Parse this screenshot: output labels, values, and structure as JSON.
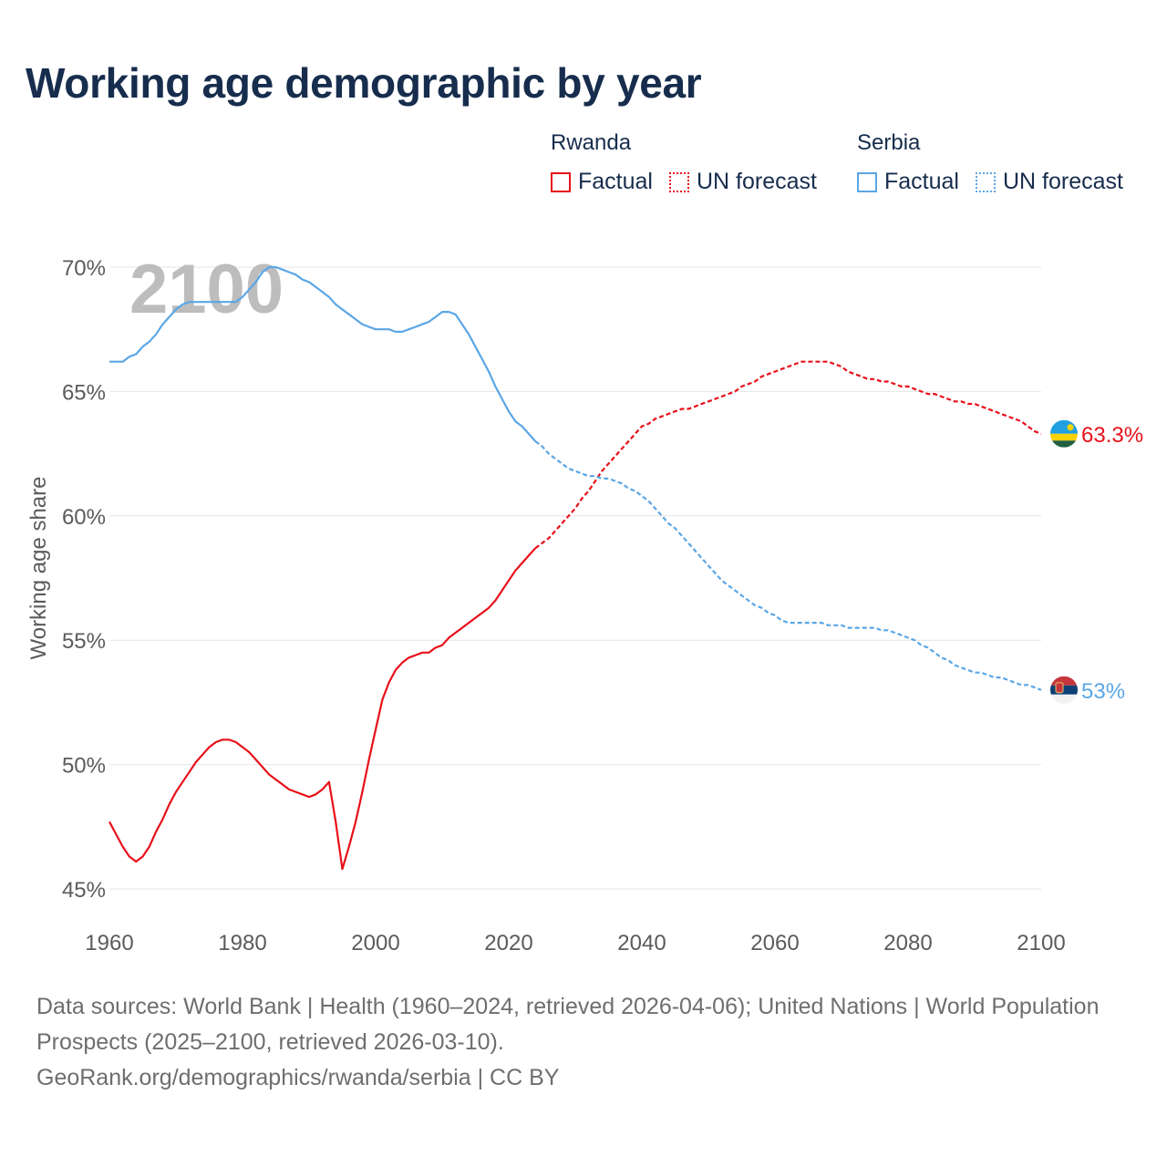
{
  "title": "Working age demographic by year",
  "legend": [
    {
      "country": "Rwanda",
      "factual_label": "Factual",
      "forecast_label": "UN forecast",
      "color": "#e8101a"
    },
    {
      "country": "Serbia",
      "factual_label": "Factual",
      "forecast_label": "UN forecast",
      "color": "#5aa6e6"
    }
  ],
  "year_watermark": "2100",
  "footer": {
    "sources": "Data sources: World Bank | Health (1960–2024, retrieved 2026-04-06); United Nations | World Population Prospects (2025–2100, retrieved 2026-03-10).",
    "credit": "GeoRank.org/demographics/rwanda/serbia | CC BY"
  },
  "chart_data": {
    "type": "line",
    "title": "Working age demographic by year",
    "xlabel": "",
    "ylabel": "Working age share",
    "xlim": [
      1960,
      2100
    ],
    "ylim": [
      45,
      70
    ],
    "x_ticks": [
      1960,
      1980,
      2000,
      2020,
      2040,
      2060,
      2080,
      2100
    ],
    "y_ticks": [
      45,
      50,
      55,
      60,
      65,
      70
    ],
    "y_tick_labels": [
      "45%",
      "50%",
      "55%",
      "60%",
      "65%",
      "70%"
    ],
    "forecast_start": 2024,
    "series": [
      {
        "name": "Rwanda",
        "color": "#e8101a",
        "end_label": "63.3%",
        "points": [
          [
            1960,
            47.7
          ],
          [
            1961,
            47.2
          ],
          [
            1962,
            46.7
          ],
          [
            1963,
            46.3
          ],
          [
            1964,
            46.1
          ],
          [
            1965,
            46.3
          ],
          [
            1966,
            46.7
          ],
          [
            1967,
            47.3
          ],
          [
            1968,
            47.8
          ],
          [
            1969,
            48.4
          ],
          [
            1970,
            48.9
          ],
          [
            1971,
            49.3
          ],
          [
            1972,
            49.7
          ],
          [
            1973,
            50.1
          ],
          [
            1974,
            50.4
          ],
          [
            1975,
            50.7
          ],
          [
            1976,
            50.9
          ],
          [
            1977,
            51.0
          ],
          [
            1978,
            51.0
          ],
          [
            1979,
            50.9
          ],
          [
            1980,
            50.7
          ],
          [
            1981,
            50.5
          ],
          [
            1982,
            50.2
          ],
          [
            1983,
            49.9
          ],
          [
            1984,
            49.6
          ],
          [
            1985,
            49.4
          ],
          [
            1986,
            49.2
          ],
          [
            1987,
            49.0
          ],
          [
            1988,
            48.9
          ],
          [
            1989,
            48.8
          ],
          [
            1990,
            48.7
          ],
          [
            1991,
            48.8
          ],
          [
            1992,
            49.0
          ],
          [
            1993,
            49.3
          ],
          [
            1994,
            47.7
          ],
          [
            1995,
            45.8
          ],
          [
            1996,
            46.7
          ],
          [
            1997,
            47.7
          ],
          [
            1998,
            48.9
          ],
          [
            1999,
            50.2
          ],
          [
            2000,
            51.4
          ],
          [
            2001,
            52.6
          ],
          [
            2002,
            53.3
          ],
          [
            2003,
            53.8
          ],
          [
            2004,
            54.1
          ],
          [
            2005,
            54.3
          ],
          [
            2006,
            54.4
          ],
          [
            2007,
            54.5
          ],
          [
            2008,
            54.5
          ],
          [
            2009,
            54.7
          ],
          [
            2010,
            54.8
          ],
          [
            2011,
            55.1
          ],
          [
            2012,
            55.3
          ],
          [
            2013,
            55.5
          ],
          [
            2014,
            55.7
          ],
          [
            2015,
            55.9
          ],
          [
            2016,
            56.1
          ],
          [
            2017,
            56.3
          ],
          [
            2018,
            56.6
          ],
          [
            2019,
            57.0
          ],
          [
            2020,
            57.4
          ],
          [
            2021,
            57.8
          ],
          [
            2022,
            58.1
          ],
          [
            2023,
            58.4
          ],
          [
            2024,
            58.7
          ],
          [
            2025,
            58.9
          ],
          [
            2026,
            59.1
          ],
          [
            2027,
            59.4
          ],
          [
            2028,
            59.7
          ],
          [
            2029,
            60.0
          ],
          [
            2030,
            60.3
          ],
          [
            2031,
            60.7
          ],
          [
            2032,
            61.0
          ],
          [
            2033,
            61.4
          ],
          [
            2034,
            61.8
          ],
          [
            2035,
            62.1
          ],
          [
            2036,
            62.4
          ],
          [
            2037,
            62.7
          ],
          [
            2038,
            63.0
          ],
          [
            2039,
            63.3
          ],
          [
            2040,
            63.6
          ],
          [
            2041,
            63.7
          ],
          [
            2042,
            63.9
          ],
          [
            2043,
            64.0
          ],
          [
            2044,
            64.1
          ],
          [
            2045,
            64.2
          ],
          [
            2046,
            64.3
          ],
          [
            2047,
            64.3
          ],
          [
            2048,
            64.4
          ],
          [
            2049,
            64.5
          ],
          [
            2050,
            64.6
          ],
          [
            2051,
            64.7
          ],
          [
            2052,
            64.8
          ],
          [
            2053,
            64.9
          ],
          [
            2054,
            65.0
          ],
          [
            2055,
            65.2
          ],
          [
            2056,
            65.3
          ],
          [
            2057,
            65.4
          ],
          [
            2058,
            65.6
          ],
          [
            2059,
            65.7
          ],
          [
            2060,
            65.8
          ],
          [
            2061,
            65.9
          ],
          [
            2062,
            66.0
          ],
          [
            2063,
            66.1
          ],
          [
            2064,
            66.2
          ],
          [
            2065,
            66.2
          ],
          [
            2066,
            66.2
          ],
          [
            2067,
            66.2
          ],
          [
            2068,
            66.2
          ],
          [
            2069,
            66.1
          ],
          [
            2070,
            66.0
          ],
          [
            2071,
            65.8
          ],
          [
            2072,
            65.7
          ],
          [
            2073,
            65.6
          ],
          [
            2074,
            65.5
          ],
          [
            2075,
            65.5
          ],
          [
            2076,
            65.4
          ],
          [
            2077,
            65.4
          ],
          [
            2078,
            65.3
          ],
          [
            2079,
            65.2
          ],
          [
            2080,
            65.2
          ],
          [
            2081,
            65.1
          ],
          [
            2082,
            65.0
          ],
          [
            2083,
            64.9
          ],
          [
            2084,
            64.9
          ],
          [
            2085,
            64.8
          ],
          [
            2086,
            64.7
          ],
          [
            2087,
            64.6
          ],
          [
            2088,
            64.6
          ],
          [
            2089,
            64.5
          ],
          [
            2090,
            64.5
          ],
          [
            2091,
            64.4
          ],
          [
            2092,
            64.3
          ],
          [
            2093,
            64.2
          ],
          [
            2094,
            64.1
          ],
          [
            2095,
            64.0
          ],
          [
            2096,
            63.9
          ],
          [
            2097,
            63.8
          ],
          [
            2098,
            63.6
          ],
          [
            2099,
            63.4
          ],
          [
            2100,
            63.3
          ]
        ]
      },
      {
        "name": "Serbia",
        "color": "#5aa6e6",
        "end_label": "53%",
        "points": [
          [
            1960,
            66.2
          ],
          [
            1961,
            66.2
          ],
          [
            1962,
            66.2
          ],
          [
            1963,
            66.4
          ],
          [
            1964,
            66.5
          ],
          [
            1965,
            66.8
          ],
          [
            1966,
            67.0
          ],
          [
            1967,
            67.3
          ],
          [
            1968,
            67.7
          ],
          [
            1969,
            68.0
          ],
          [
            1970,
            68.3
          ],
          [
            1971,
            68.5
          ],
          [
            1972,
            68.6
          ],
          [
            1973,
            68.6
          ],
          [
            1974,
            68.6
          ],
          [
            1975,
            68.6
          ],
          [
            1976,
            68.6
          ],
          [
            1977,
            68.6
          ],
          [
            1978,
            68.6
          ],
          [
            1979,
            68.6
          ],
          [
            1980,
            68.8
          ],
          [
            1981,
            69.1
          ],
          [
            1982,
            69.4
          ],
          [
            1983,
            69.8
          ],
          [
            1984,
            70.0
          ],
          [
            1985,
            70.0
          ],
          [
            1986,
            69.9
          ],
          [
            1987,
            69.8
          ],
          [
            1988,
            69.7
          ],
          [
            1989,
            69.5
          ],
          [
            1990,
            69.4
          ],
          [
            1991,
            69.2
          ],
          [
            1992,
            69.0
          ],
          [
            1993,
            68.8
          ],
          [
            1994,
            68.5
          ],
          [
            1995,
            68.3
          ],
          [
            1996,
            68.1
          ],
          [
            1997,
            67.9
          ],
          [
            1998,
            67.7
          ],
          [
            1999,
            67.6
          ],
          [
            2000,
            67.5
          ],
          [
            2001,
            67.5
          ],
          [
            2002,
            67.5
          ],
          [
            2003,
            67.4
          ],
          [
            2004,
            67.4
          ],
          [
            2005,
            67.5
          ],
          [
            2006,
            67.6
          ],
          [
            2007,
            67.7
          ],
          [
            2008,
            67.8
          ],
          [
            2009,
            68.0
          ],
          [
            2010,
            68.2
          ],
          [
            2011,
            68.2
          ],
          [
            2012,
            68.1
          ],
          [
            2013,
            67.7
          ],
          [
            2014,
            67.3
          ],
          [
            2015,
            66.8
          ],
          [
            2016,
            66.3
          ],
          [
            2017,
            65.8
          ],
          [
            2018,
            65.2
          ],
          [
            2019,
            64.7
          ],
          [
            2020,
            64.2
          ],
          [
            2021,
            63.8
          ],
          [
            2022,
            63.6
          ],
          [
            2023,
            63.3
          ],
          [
            2024,
            63.0
          ],
          [
            2025,
            62.8
          ],
          [
            2026,
            62.5
          ],
          [
            2027,
            62.3
          ],
          [
            2028,
            62.1
          ],
          [
            2029,
            61.9
          ],
          [
            2030,
            61.8
          ],
          [
            2031,
            61.7
          ],
          [
            2032,
            61.6
          ],
          [
            2033,
            61.6
          ],
          [
            2034,
            61.5
          ],
          [
            2035,
            61.5
          ],
          [
            2036,
            61.4
          ],
          [
            2037,
            61.3
          ],
          [
            2038,
            61.1
          ],
          [
            2039,
            61.0
          ],
          [
            2040,
            60.8
          ],
          [
            2041,
            60.6
          ],
          [
            2042,
            60.3
          ],
          [
            2043,
            60.0
          ],
          [
            2044,
            59.7
          ],
          [
            2045,
            59.5
          ],
          [
            2046,
            59.2
          ],
          [
            2047,
            58.9
          ],
          [
            2048,
            58.6
          ],
          [
            2049,
            58.3
          ],
          [
            2050,
            58.0
          ],
          [
            2051,
            57.7
          ],
          [
            2052,
            57.4
          ],
          [
            2053,
            57.2
          ],
          [
            2054,
            57.0
          ],
          [
            2055,
            56.8
          ],
          [
            2056,
            56.6
          ],
          [
            2057,
            56.4
          ],
          [
            2058,
            56.3
          ],
          [
            2059,
            56.1
          ],
          [
            2060,
            56.0
          ],
          [
            2061,
            55.8
          ],
          [
            2062,
            55.7
          ],
          [
            2063,
            55.7
          ],
          [
            2064,
            55.7
          ],
          [
            2065,
            55.7
          ],
          [
            2066,
            55.7
          ],
          [
            2067,
            55.7
          ],
          [
            2068,
            55.6
          ],
          [
            2069,
            55.6
          ],
          [
            2070,
            55.6
          ],
          [
            2071,
            55.5
          ],
          [
            2072,
            55.5
          ],
          [
            2073,
            55.5
          ],
          [
            2074,
            55.5
          ],
          [
            2075,
            55.5
          ],
          [
            2076,
            55.4
          ],
          [
            2077,
            55.4
          ],
          [
            2078,
            55.3
          ],
          [
            2079,
            55.2
          ],
          [
            2080,
            55.1
          ],
          [
            2081,
            55.0
          ],
          [
            2082,
            54.8
          ],
          [
            2083,
            54.7
          ],
          [
            2084,
            54.5
          ],
          [
            2085,
            54.3
          ],
          [
            2086,
            54.2
          ],
          [
            2087,
            54.0
          ],
          [
            2088,
            53.9
          ],
          [
            2089,
            53.8
          ],
          [
            2090,
            53.7
          ],
          [
            2091,
            53.7
          ],
          [
            2092,
            53.6
          ],
          [
            2093,
            53.5
          ],
          [
            2094,
            53.5
          ],
          [
            2095,
            53.4
          ],
          [
            2096,
            53.3
          ],
          [
            2097,
            53.2
          ],
          [
            2098,
            53.2
          ],
          [
            2099,
            53.1
          ],
          [
            2100,
            53.0
          ]
        ]
      }
    ]
  }
}
